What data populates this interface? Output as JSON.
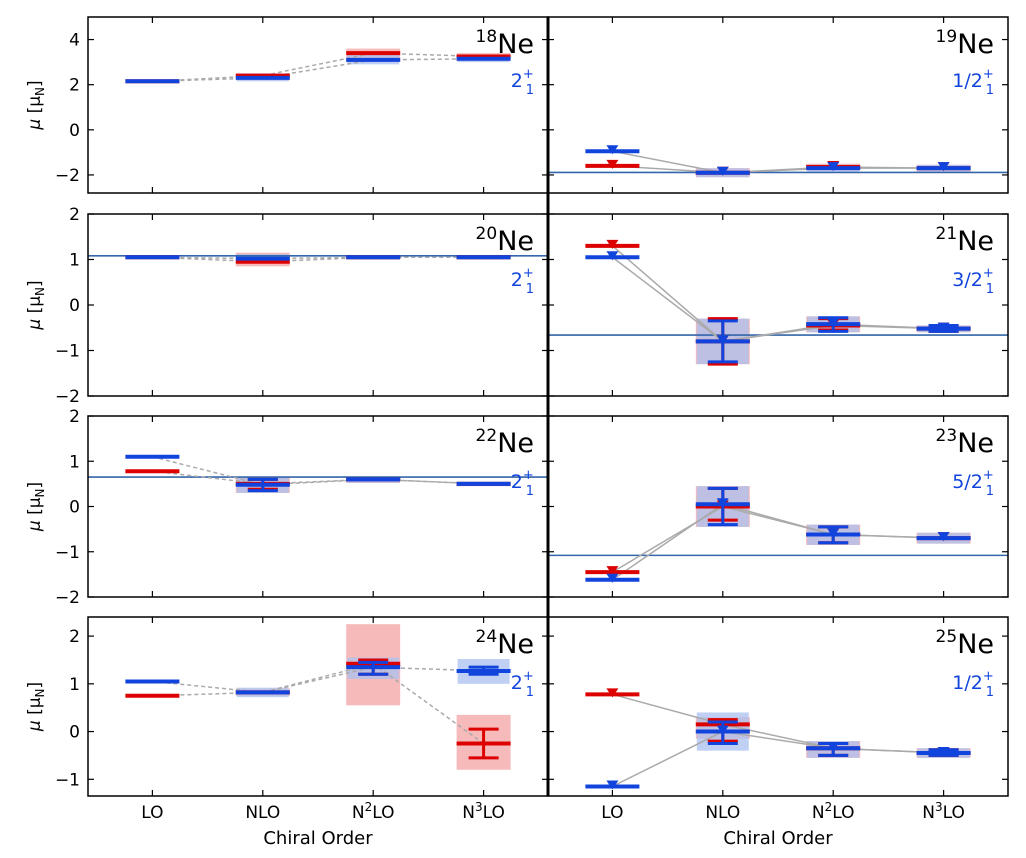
{
  "colors": {
    "red": "#dd0000",
    "blue": "#1144dd",
    "band_red": "#f4a3a3",
    "band_blue": "#a9c0f0",
    "connector": "#aaaaaa",
    "exp_line": "#3366aa",
    "state_label": "#1144dd"
  },
  "x_categories": [
    "LO",
    "NLO",
    "N2LO",
    "N3LO"
  ],
  "x_tick_labels": [
    {
      "base": "LO",
      "sup": "",
      "tail": ""
    },
    {
      "base": "NLO",
      "sup": "",
      "tail": ""
    },
    {
      "base": "N",
      "sup": "2",
      "tail": "LO"
    },
    {
      "base": "N",
      "sup": "3",
      "tail": "LO"
    }
  ],
  "xlabel": "Chiral Order",
  "ylabel": {
    "mu": "μ",
    "unit_pre": "[μ",
    "unit_sub": "N",
    "unit_post": "]"
  },
  "chart_data": [
    {
      "type": "line",
      "title": "18Ne",
      "mass_number": "18",
      "element": "Ne",
      "state": {
        "base": "2",
        "sub": "1",
        "sup": "+"
      },
      "ylim": [
        -2.8,
        5
      ],
      "yticks": [
        -2,
        0,
        2,
        4
      ],
      "marker": "bar",
      "experiment": null,
      "series": [
        {
          "name": "red",
          "values": [
            2.15,
            2.4,
            3.4,
            3.25
          ],
          "err": [
            [
              0,
              0
            ],
            [
              0,
              0
            ],
            [
              0,
              0
            ],
            [
              0,
              0
            ]
          ],
          "band": [
            [
              0,
              0
            ],
            [
              2.2,
              2.5
            ],
            [
              3.0,
              3.6
            ],
            [
              3.05,
              3.4
            ]
          ]
        },
        {
          "name": "blue",
          "values": [
            2.15,
            2.3,
            3.1,
            3.15
          ],
          "err": [
            [
              0,
              0
            ],
            [
              0,
              0
            ],
            [
              0,
              0
            ],
            [
              0,
              0
            ]
          ],
          "band": [
            [
              0,
              0
            ],
            [
              2.15,
              2.5
            ],
            [
              2.9,
              3.4
            ],
            [
              3.0,
              3.3
            ]
          ]
        }
      ]
    },
    {
      "type": "line",
      "title": "19Ne",
      "mass_number": "19",
      "element": "Ne",
      "state": {
        "base": "1/2",
        "sub": "1",
        "sup": "+"
      },
      "ylim": [
        -2.8,
        5
      ],
      "yticks": [
        -2,
        0,
        2,
        4
      ],
      "marker": "triangle",
      "experiment": -1.89,
      "series": [
        {
          "name": "red",
          "values": [
            -1.6,
            -1.9,
            -1.65,
            -1.7
          ],
          "err": [
            [
              0,
              0
            ],
            [
              0,
              0
            ],
            [
              0,
              0
            ],
            [
              0,
              0
            ]
          ],
          "band": [
            [
              0,
              0
            ],
            [
              -2.1,
              -1.7
            ],
            [
              -1.8,
              -1.5
            ],
            [
              -1.85,
              -1.55
            ]
          ]
        },
        {
          "name": "blue",
          "values": [
            -0.95,
            -1.9,
            -1.7,
            -1.7
          ],
          "err": [
            [
              0,
              0
            ],
            [
              0,
              0
            ],
            [
              0,
              0
            ],
            [
              0,
              0
            ]
          ],
          "band": [
            [
              0,
              0
            ],
            [
              -2.1,
              -1.7
            ],
            [
              -1.85,
              -1.55
            ],
            [
              -1.85,
              -1.55
            ]
          ]
        }
      ]
    },
    {
      "type": "line",
      "title": "20Ne",
      "mass_number": "20",
      "element": "Ne",
      "state": {
        "base": "2",
        "sub": "1",
        "sup": "+"
      },
      "ylim": [
        -2,
        2
      ],
      "yticks": [
        -2,
        -1,
        0,
        1,
        2
      ],
      "marker": "bar",
      "experiment": 1.08,
      "series": [
        {
          "name": "red",
          "values": [
            1.05,
            0.95,
            1.05,
            1.05
          ],
          "err": [
            [
              0,
              0
            ],
            [
              0,
              0
            ],
            [
              0,
              0
            ],
            [
              0,
              0
            ]
          ],
          "band": [
            [
              0,
              0
            ],
            [
              0.85,
              1.15
            ],
            [
              1.0,
              1.1
            ],
            [
              1.0,
              1.1
            ]
          ]
        },
        {
          "name": "blue",
          "values": [
            1.05,
            1.02,
            1.05,
            1.05
          ],
          "err": [
            [
              0,
              0
            ],
            [
              0,
              0
            ],
            [
              0,
              0
            ],
            [
              0,
              0
            ]
          ],
          "band": [
            [
              0,
              0
            ],
            [
              0.95,
              1.12
            ],
            [
              1.0,
              1.1
            ],
            [
              1.0,
              1.1
            ]
          ]
        }
      ]
    },
    {
      "type": "line",
      "title": "21Ne",
      "mass_number": "21",
      "element": "Ne",
      "state": {
        "base": "3/2",
        "sub": "1",
        "sup": "+"
      },
      "ylim": [
        -2,
        2
      ],
      "yticks": [
        -2,
        -1,
        0,
        1,
        2
      ],
      "marker": "triangle",
      "experiment": -0.66,
      "series": [
        {
          "name": "red",
          "values": [
            1.3,
            -0.8,
            -0.45,
            -0.52
          ],
          "err": [
            [
              0,
              0
            ],
            [
              -1.3,
              -0.3
            ],
            [
              -0.55,
              -0.3
            ],
            [
              -0.58,
              -0.45
            ]
          ],
          "band": [
            [
              0,
              0
            ],
            [
              -1.3,
              -0.3
            ],
            [
              -0.6,
              -0.25
            ],
            [
              -0.6,
              -0.45
            ]
          ]
        },
        {
          "name": "blue",
          "values": [
            1.05,
            -0.8,
            -0.42,
            -0.52
          ],
          "err": [
            [
              0,
              0
            ],
            [
              -1.25,
              -0.35
            ],
            [
              -0.58,
              -0.28
            ],
            [
              -0.58,
              -0.45
            ]
          ],
          "band": [
            [
              0,
              0
            ],
            [
              -1.3,
              -0.3
            ],
            [
              -0.6,
              -0.25
            ],
            [
              -0.6,
              -0.45
            ]
          ]
        }
      ]
    },
    {
      "type": "line",
      "title": "22Ne",
      "mass_number": "22",
      "element": "Ne",
      "state": {
        "base": "2",
        "sub": "1",
        "sup": "+"
      },
      "ylim": [
        -2,
        2
      ],
      "yticks": [
        -2,
        -1,
        0,
        1,
        2
      ],
      "marker": "bar",
      "experiment": 0.65,
      "series": [
        {
          "name": "red",
          "values": [
            0.78,
            0.5,
            0.6,
            0.5
          ],
          "err": [
            [
              0,
              0
            ],
            [
              0.38,
              0.6
            ],
            [
              0,
              0
            ],
            [
              0,
              0
            ]
          ],
          "band": [
            [
              0,
              0
            ],
            [
              0.3,
              0.65
            ],
            [
              0.52,
              0.66
            ],
            [
              0.45,
              0.55
            ]
          ]
        },
        {
          "name": "blue",
          "values": [
            1.1,
            0.48,
            0.6,
            0.5
          ],
          "err": [
            [
              0,
              0
            ],
            [
              0.35,
              0.6
            ],
            [
              0,
              0
            ],
            [
              0,
              0
            ]
          ],
          "band": [
            [
              0,
              0
            ],
            [
              0.3,
              0.65
            ],
            [
              0.52,
              0.66
            ],
            [
              0.45,
              0.55
            ]
          ]
        }
      ]
    },
    {
      "type": "line",
      "title": "23Ne",
      "mass_number": "23",
      "element": "Ne",
      "state": {
        "base": "5/2",
        "sub": "1",
        "sup": "+"
      },
      "ylim": [
        -2,
        2
      ],
      "yticks": [
        -2,
        -1,
        0,
        1,
        2
      ],
      "marker": "triangle",
      "experiment": -1.08,
      "series": [
        {
          "name": "red",
          "values": [
            -1.45,
            0.0,
            -0.62,
            -0.7
          ],
          "err": [
            [
              0,
              0
            ],
            [
              -0.3,
              0.4
            ],
            [
              -0.8,
              -0.45
            ],
            [
              0,
              0
            ]
          ],
          "band": [
            [
              0,
              0
            ],
            [
              -0.45,
              0.45
            ],
            [
              -0.85,
              -0.4
            ],
            [
              -0.82,
              -0.58
            ]
          ]
        },
        {
          "name": "blue",
          "values": [
            -1.62,
            0.05,
            -0.62,
            -0.7
          ],
          "err": [
            [
              0,
              0
            ],
            [
              -0.4,
              0.4
            ],
            [
              -0.8,
              -0.45
            ],
            [
              0,
              0
            ]
          ],
          "band": [
            [
              0,
              0
            ],
            [
              -0.45,
              0.45
            ],
            [
              -0.85,
              -0.4
            ],
            [
              -0.82,
              -0.58
            ]
          ]
        }
      ]
    },
    {
      "type": "line",
      "title": "24Ne",
      "mass_number": "24",
      "element": "Ne",
      "state": {
        "base": "2",
        "sub": "1",
        "sup": "+"
      },
      "ylim": [
        -1.35,
        2.4
      ],
      "yticks": [
        -1,
        0,
        1,
        2
      ],
      "marker": "bar",
      "experiment": null,
      "series": [
        {
          "name": "red",
          "values": [
            0.75,
            0.82,
            1.42,
            -0.25
          ],
          "err": [
            [
              0,
              0
            ],
            [
              0,
              0
            ],
            [
              1.2,
              1.5
            ],
            [
              -0.55,
              0.05
            ]
          ],
          "band": [
            [
              0,
              0
            ],
            [
              0.75,
              0.9
            ],
            [
              0.55,
              2.25
            ],
            [
              -0.8,
              0.35
            ]
          ]
        },
        {
          "name": "blue",
          "values": [
            1.05,
            0.82,
            1.35,
            1.27
          ],
          "err": [
            [
              0,
              0
            ],
            [
              0,
              0
            ],
            [
              1.2,
              1.45
            ],
            [
              1.2,
              1.35
            ]
          ],
          "band": [
            [
              0,
              0
            ],
            [
              0.72,
              0.92
            ],
            [
              1.1,
              1.55
            ],
            [
              1.0,
              1.52
            ]
          ]
        }
      ]
    },
    {
      "type": "line",
      "title": "25Ne",
      "mass_number": "25",
      "element": "Ne",
      "state": {
        "base": "1/2",
        "sub": "1",
        "sup": "+"
      },
      "ylim": [
        -1.35,
        2.4
      ],
      "yticks": [
        -1,
        0,
        1,
        2
      ],
      "marker": "triangle",
      "experiment": null,
      "series": [
        {
          "name": "red",
          "values": [
            0.78,
            0.15,
            -0.35,
            -0.45
          ],
          "err": [
            [
              0,
              0
            ],
            [
              -0.2,
              0.25
            ],
            [
              -0.5,
              -0.25
            ],
            [
              -0.5,
              -0.38
            ]
          ],
          "band": [
            [
              0,
              0
            ],
            [
              -0.15,
              0.3
            ],
            [
              -0.55,
              -0.2
            ],
            [
              -0.55,
              -0.35
            ]
          ]
        },
        {
          "name": "blue",
          "values": [
            -1.15,
            0.0,
            -0.35,
            -0.45
          ],
          "err": [
            [
              0,
              0
            ],
            [
              -0.25,
              0.2
            ],
            [
              -0.5,
              -0.25
            ],
            [
              -0.5,
              -0.38
            ]
          ],
          "band": [
            [
              0,
              0
            ],
            [
              -0.4,
              0.4
            ],
            [
              -0.55,
              -0.2
            ],
            [
              -0.55,
              -0.35
            ]
          ]
        }
      ]
    }
  ]
}
